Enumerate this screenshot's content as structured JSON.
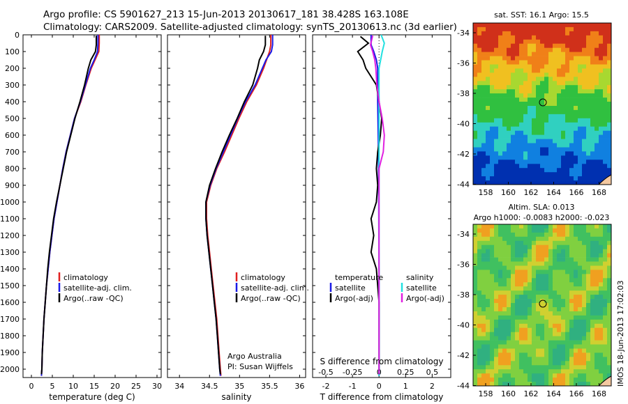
{
  "title": {
    "line1": "Argo profile: CS 5901627_213 15-Jun-2013 20130617_181 38.428S 163.108E",
    "line2": "Climatology: CARS2009. Satellite-adjusted climatology: synTS_20130613.nc (3d earlier)"
  },
  "colors": {
    "climatology": "#e02020",
    "satellite": "#1a1ae6",
    "argo": "#000000",
    "sat_salinity": "#22e0e0",
    "argo_salinity": "#e020e0"
  },
  "legend": {
    "climatology": "climatology",
    "satellite_adj": "satellite-adj. clim.",
    "argo": "Argo(..raw -QC)",
    "temperature": "temperature",
    "salinity": "salinity",
    "satellite": "satellite",
    "argo_adj": "Argo(-adj)"
  },
  "credit": {
    "line1": "Argo Australia",
    "line2": "PI: Susan Wijffels"
  },
  "side_text": "IMOS 18-Jun-2013 17:02:03",
  "maps": {
    "sst": {
      "title": "sat. SST: 16.1  Argo: 15.5",
      "xticks": [
        "158",
        "160",
        "162",
        "164",
        "166",
        "168"
      ],
      "yticks": [
        "-34",
        "-36",
        "-38",
        "-40",
        "-42",
        "-44"
      ]
    },
    "sla": {
      "title1": "Altim. SLA: 0.013",
      "title2": "Argo h1000: -0.0083 h2000: -0.023",
      "xticks": [
        "158",
        "160",
        "162",
        "164",
        "166",
        "168"
      ],
      "yticks": [
        "-34",
        "-36",
        "-38",
        "-40",
        "-42",
        "-44"
      ]
    }
  },
  "chart_data": [
    {
      "type": "line",
      "name": "temperature profile",
      "xlabel": "temperature (deg C)",
      "ylabel": "",
      "xlim": [
        -2,
        31
      ],
      "ylim": [
        2050,
        0
      ],
      "xticks": [
        0,
        5,
        10,
        15,
        20,
        25,
        30
      ],
      "yticks": [
        0,
        100,
        200,
        300,
        400,
        500,
        600,
        700,
        800,
        900,
        1000,
        1100,
        1200,
        1300,
        1400,
        1500,
        1600,
        1700,
        1800,
        1900,
        2000
      ],
      "series": [
        {
          "name": "climatology",
          "color": "#e02020",
          "points": [
            [
              16.2,
              0
            ],
            [
              16.2,
              50
            ],
            [
              16.1,
              100
            ],
            [
              15.2,
              150
            ],
            [
              14.3,
              200
            ],
            [
              13.0,
              300
            ],
            [
              11.8,
              400
            ],
            [
              10.3,
              500
            ],
            [
              9.3,
              600
            ],
            [
              8.3,
              700
            ],
            [
              7.5,
              800
            ],
            [
              6.8,
              900
            ],
            [
              6.1,
              1000
            ],
            [
              5.4,
              1100
            ],
            [
              4.9,
              1200
            ],
            [
              4.4,
              1300
            ],
            [
              4.0,
              1400
            ],
            [
              3.6,
              1500
            ],
            [
              3.3,
              1600
            ],
            [
              3.0,
              1700
            ],
            [
              2.8,
              1800
            ],
            [
              2.6,
              1900
            ],
            [
              2.5,
              2000
            ],
            [
              2.4,
              2040
            ]
          ]
        },
        {
          "name": "satellite-adj. clim.",
          "color": "#1a1ae6",
          "points": [
            [
              15.9,
              0
            ],
            [
              15.9,
              50
            ],
            [
              15.8,
              100
            ],
            [
              15.0,
              150
            ],
            [
              14.1,
              200
            ],
            [
              12.9,
              300
            ],
            [
              11.7,
              400
            ],
            [
              10.3,
              500
            ],
            [
              9.3,
              600
            ],
            [
              8.3,
              700
            ],
            [
              7.5,
              800
            ],
            [
              6.8,
              900
            ],
            [
              6.1,
              1000
            ],
            [
              5.4,
              1100
            ],
            [
              4.9,
              1200
            ],
            [
              4.4,
              1300
            ],
            [
              4.0,
              1400
            ],
            [
              3.6,
              1500
            ],
            [
              3.3,
              1600
            ],
            [
              3.0,
              1700
            ],
            [
              2.8,
              1800
            ],
            [
              2.6,
              1900
            ],
            [
              2.5,
              2000
            ],
            [
              2.4,
              2040
            ]
          ]
        },
        {
          "name": "Argo(..raw -QC)",
          "color": "#000000",
          "points": [
            [
              15.5,
              5
            ],
            [
              15.5,
              60
            ],
            [
              15.3,
              100
            ],
            [
              14.2,
              150
            ],
            [
              13.6,
              200
            ],
            [
              12.7,
              300
            ],
            [
              11.6,
              400
            ],
            [
              10.4,
              500
            ],
            [
              9.4,
              600
            ],
            [
              8.4,
              700
            ],
            [
              7.6,
              800
            ],
            [
              6.8,
              900
            ],
            [
              6.0,
              1000
            ],
            [
              5.3,
              1100
            ],
            [
              4.8,
              1200
            ],
            [
              4.3,
              1300
            ],
            [
              3.9,
              1400
            ],
            [
              3.6,
              1500
            ],
            [
              3.3,
              1600
            ],
            [
              3.0,
              1700
            ],
            [
              2.8,
              1800
            ],
            [
              2.6,
              1900
            ],
            [
              2.5,
              2000
            ],
            [
              2.4,
              2030
            ]
          ]
        }
      ]
    },
    {
      "type": "line",
      "name": "salinity profile",
      "xlabel": "salinity",
      "ylabel": "",
      "xlim": [
        33.8,
        36.1
      ],
      "ylim": [
        2050,
        0
      ],
      "xticks": [
        34,
        34.5,
        35,
        35.5,
        36
      ],
      "yticks": [],
      "series": [
        {
          "name": "climatology",
          "color": "#e02020",
          "points": [
            [
              35.52,
              0
            ],
            [
              35.52,
              60
            ],
            [
              35.5,
              100
            ],
            [
              35.45,
              150
            ],
            [
              35.4,
              200
            ],
            [
              35.28,
              300
            ],
            [
              35.12,
              400
            ],
            [
              34.99,
              500
            ],
            [
              34.87,
              600
            ],
            [
              34.75,
              700
            ],
            [
              34.62,
              800
            ],
            [
              34.52,
              900
            ],
            [
              34.45,
              1000
            ],
            [
              34.45,
              1100
            ],
            [
              34.47,
              1200
            ],
            [
              34.5,
              1300
            ],
            [
              34.53,
              1400
            ],
            [
              34.56,
              1500
            ],
            [
              34.59,
              1600
            ],
            [
              34.62,
              1700
            ],
            [
              34.64,
              1800
            ],
            [
              34.66,
              1900
            ],
            [
              34.68,
              2000
            ],
            [
              34.69,
              2040
            ]
          ]
        },
        {
          "name": "satellite-adj. clim.",
          "color": "#1a1ae6",
          "points": [
            [
              35.55,
              0
            ],
            [
              35.55,
              60
            ],
            [
              35.53,
              100
            ],
            [
              35.44,
              150
            ],
            [
              35.38,
              200
            ],
            [
              35.26,
              300
            ],
            [
              35.1,
              400
            ],
            [
              34.97,
              500
            ],
            [
              34.85,
              600
            ],
            [
              34.73,
              700
            ],
            [
              34.61,
              800
            ],
            [
              34.51,
              900
            ],
            [
              34.44,
              1000
            ],
            [
              34.44,
              1100
            ],
            [
              34.46,
              1200
            ],
            [
              34.49,
              1300
            ],
            [
              34.52,
              1400
            ],
            [
              34.55,
              1500
            ],
            [
              34.58,
              1600
            ],
            [
              34.61,
              1700
            ],
            [
              34.63,
              1800
            ],
            [
              34.65,
              1900
            ],
            [
              34.67,
              2000
            ],
            [
              34.68,
              2040
            ]
          ]
        },
        {
          "name": "Argo(..raw -QC)",
          "color": "#000000",
          "points": [
            [
              35.43,
              5
            ],
            [
              35.43,
              60
            ],
            [
              35.4,
              100
            ],
            [
              35.33,
              150
            ],
            [
              35.3,
              200
            ],
            [
              35.22,
              300
            ],
            [
              35.08,
              400
            ],
            [
              34.96,
              500
            ],
            [
              34.83,
              600
            ],
            [
              34.71,
              700
            ],
            [
              34.6,
              800
            ],
            [
              34.5,
              900
            ],
            [
              34.44,
              1000
            ],
            [
              34.44,
              1100
            ],
            [
              34.46,
              1200
            ],
            [
              34.49,
              1300
            ],
            [
              34.52,
              1400
            ],
            [
              34.55,
              1500
            ],
            [
              34.58,
              1600
            ],
            [
              34.61,
              1700
            ],
            [
              34.63,
              1800
            ],
            [
              34.65,
              1900
            ],
            [
              34.67,
              2000
            ],
            [
              34.68,
              2030
            ]
          ]
        }
      ]
    },
    {
      "type": "line",
      "name": "difference profile",
      "xlabel": "T difference from climatology",
      "title": "S difference from climatology",
      "xlim": [
        -2.5,
        2.7
      ],
      "ylim": [
        2050,
        0
      ],
      "xticks": [
        -2,
        -1,
        0,
        1,
        2
      ],
      "xticklabels": [
        "-2",
        "-1",
        "0",
        "1",
        "2"
      ],
      "top_ticks": [
        -0.5,
        -0.25,
        0,
        0.25,
        0.5
      ],
      "top_ticklabels": [
        "-0.5",
        "-0.25",
        "0",
        "0.25",
        "0.5"
      ],
      "series": [
        {
          "name": "temperature satellite",
          "color": "#1a1ae6",
          "points": [
            [
              -0.3,
              0
            ],
            [
              -0.3,
              60
            ],
            [
              -0.2,
              100
            ],
            [
              -0.1,
              150
            ],
            [
              -0.05,
              200
            ],
            [
              -0.05,
              400
            ],
            [
              -0.02,
              700
            ],
            [
              -0.01,
              1000
            ],
            [
              0,
              1500
            ],
            [
              0,
              2040
            ]
          ]
        },
        {
          "name": "temperature Argo(-adj)",
          "color": "#000000",
          "points": [
            [
              -0.7,
              10
            ],
            [
              -0.4,
              50
            ],
            [
              -0.8,
              100
            ],
            [
              -0.6,
              150
            ],
            [
              -0.5,
              200
            ],
            [
              -0.1,
              300
            ],
            [
              0.0,
              400
            ],
            [
              0.1,
              500
            ],
            [
              0.05,
              600
            ],
            [
              -0.05,
              700
            ],
            [
              -0.1,
              800
            ],
            [
              -0.05,
              900
            ],
            [
              -0.1,
              1000
            ],
            [
              -0.3,
              1100
            ],
            [
              -0.2,
              1200
            ],
            [
              -0.3,
              1300
            ],
            [
              -0.1,
              1400
            ],
            [
              -0.05,
              1500
            ],
            [
              0,
              1600
            ],
            [
              0,
              2030
            ]
          ]
        },
        {
          "name": "salinity satellite",
          "color": "#22e0e0",
          "points": [
            [
              0.02,
              0
            ],
            [
              0.05,
              50
            ],
            [
              0.03,
              100
            ],
            [
              0.0,
              200
            ],
            [
              0.0,
              500
            ],
            [
              0,
              1000
            ],
            [
              0,
              1500
            ],
            [
              0,
              2040
            ]
          ]
        },
        {
          "name": "salinity Argo(-adj)",
          "color": "#e020e0",
          "points": [
            [
              -0.06,
              5
            ],
            [
              -0.08,
              60
            ],
            [
              -0.06,
              100
            ],
            [
              -0.04,
              150
            ],
            [
              -0.03,
              200
            ],
            [
              -0.02,
              300
            ],
            [
              0.0,
              400
            ],
            [
              0.03,
              500
            ],
            [
              0.05,
              600
            ],
            [
              0.04,
              700
            ],
            [
              0.0,
              800
            ],
            [
              0,
              1000
            ],
            [
              0,
              1500
            ],
            [
              0,
              2030
            ]
          ]
        }
      ]
    }
  ]
}
